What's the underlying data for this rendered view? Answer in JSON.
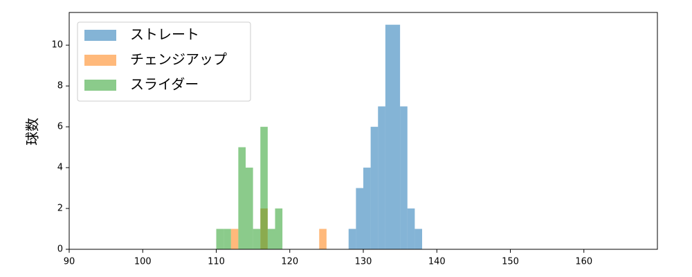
{
  "chart_data": {
    "type": "histogram",
    "ylabel": "球数",
    "xlim": [
      90,
      170
    ],
    "ylim": [
      0,
      11.6
    ],
    "xticks": [
      90,
      100,
      110,
      120,
      130,
      140,
      150,
      160
    ],
    "yticks": [
      0,
      2,
      4,
      6,
      8,
      10
    ],
    "legend": "upper left",
    "series": [
      {
        "name": "ストレート",
        "color": "#1f77b4",
        "bins": [
          128,
          129,
          130,
          131,
          132,
          133,
          134,
          135,
          136,
          137,
          138
        ],
        "values": [
          1,
          3,
          4,
          6,
          7,
          11,
          11,
          7,
          2,
          1
        ]
      },
      {
        "name": "チェンジアップ",
        "color": "#ff7f0e",
        "bins": [
          112,
          113,
          114,
          115,
          116,
          117,
          118,
          119,
          120,
          121,
          122,
          123,
          124,
          125
        ],
        "values": [
          1,
          0,
          0,
          0,
          2,
          0,
          0,
          0,
          0,
          0,
          0,
          0,
          1
        ]
      },
      {
        "name": "スライダー",
        "color": "#2ca02c",
        "bins": [
          110,
          111,
          112,
          113,
          114,
          115,
          116,
          117,
          118,
          119
        ],
        "values": [
          1,
          1,
          0,
          5,
          4,
          1,
          6,
          1,
          2
        ]
      }
    ]
  }
}
